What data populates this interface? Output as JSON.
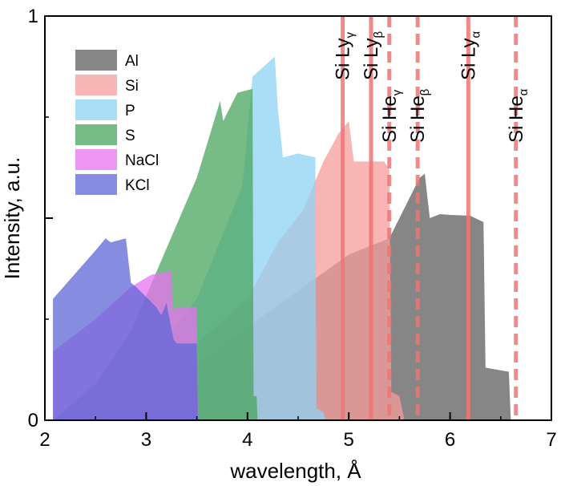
{
  "chart_data": {
    "type": "area",
    "xlabel": "wavelength, Å",
    "ylabel": "Intensity, a.u.",
    "xlim": [
      2,
      7
    ],
    "ylim": [
      0,
      1
    ],
    "x_ticks": [
      "2",
      "3",
      "4",
      "5",
      "6",
      "7"
    ],
    "y_ticks": [
      "0",
      "1"
    ],
    "grid": false,
    "legend_position": "top-left",
    "series": [
      {
        "name": "Al",
        "color": "#5e5e5e",
        "points": [
          [
            2.08,
            0
          ],
          [
            2.6,
            0.03
          ],
          [
            3.0,
            0.07
          ],
          [
            3.5,
            0.14
          ],
          [
            4.0,
            0.23
          ],
          [
            4.5,
            0.32
          ],
          [
            5.0,
            0.41
          ],
          [
            5.4,
            0.45
          ],
          [
            5.7,
            0.6
          ],
          [
            5.75,
            0.61
          ],
          [
            5.8,
            0.5
          ],
          [
            5.9,
            0.51
          ],
          [
            6.0,
            0.508
          ],
          [
            6.2,
            0.506
          ],
          [
            6.33,
            0.49
          ],
          [
            6.35,
            0.13
          ],
          [
            6.58,
            0.12
          ],
          [
            6.6,
            0
          ]
        ]
      },
      {
        "name": "Si",
        "color": "#f79b9b",
        "points": [
          [
            2.08,
            0
          ],
          [
            2.5,
            0.04
          ],
          [
            3.0,
            0.1
          ],
          [
            3.5,
            0.19
          ],
          [
            4.0,
            0.3
          ],
          [
            4.3,
            0.44
          ],
          [
            4.55,
            0.52
          ],
          [
            4.75,
            0.64
          ],
          [
            4.9,
            0.71
          ],
          [
            5.0,
            0.74
          ],
          [
            5.05,
            0.64
          ],
          [
            5.1,
            0.64
          ],
          [
            5.35,
            0.64
          ],
          [
            5.4,
            0.62
          ],
          [
            5.42,
            0.07
          ],
          [
            5.5,
            0.06
          ],
          [
            5.55,
            0
          ]
        ]
      },
      {
        "name": "P",
        "color": "#8dd3f3",
        "points": [
          [
            2.08,
            0
          ],
          [
            2.5,
            0.06
          ],
          [
            3.0,
            0.15
          ],
          [
            3.5,
            0.3
          ],
          [
            3.95,
            0.58
          ],
          [
            4.05,
            0.85
          ],
          [
            4.27,
            0.9
          ],
          [
            4.3,
            0.77
          ],
          [
            4.33,
            0.7
          ],
          [
            4.35,
            0.65
          ],
          [
            4.5,
            0.66
          ],
          [
            4.67,
            0.65
          ],
          [
            4.68,
            0.03
          ],
          [
            4.75,
            0.02
          ],
          [
            4.77,
            0
          ]
        ]
      },
      {
        "name": "S",
        "color": "#4aa65d",
        "points": [
          [
            2.08,
            0
          ],
          [
            2.5,
            0.09
          ],
          [
            2.85,
            0.22
          ],
          [
            3.5,
            0.6
          ],
          [
            3.73,
            0.79
          ],
          [
            3.76,
            0.74
          ],
          [
            3.9,
            0.81
          ],
          [
            4.05,
            0.82
          ],
          [
            4.06,
            0.06
          ],
          [
            4.09,
            0.06
          ],
          [
            4.1,
            0
          ]
        ]
      },
      {
        "name": "NaCl",
        "color": "#e873f0",
        "points": [
          [
            2.08,
            0.17
          ],
          [
            2.5,
            0.25
          ],
          [
            2.85,
            0.33
          ],
          [
            3.05,
            0.36
          ],
          [
            3.25,
            0.37
          ],
          [
            3.26,
            0.27
          ],
          [
            3.3,
            0.28
          ],
          [
            3.42,
            0.28
          ],
          [
            3.5,
            0.28
          ],
          [
            3.51,
            0
          ]
        ]
      },
      {
        "name": "KCl",
        "color": "#5d67d7",
        "points": [
          [
            2.08,
            0.3
          ],
          [
            2.5,
            0.42
          ],
          [
            2.6,
            0.45
          ],
          [
            2.65,
            0.44
          ],
          [
            2.8,
            0.45
          ],
          [
            2.85,
            0.34
          ],
          [
            2.9,
            0.33
          ],
          [
            3.1,
            0.28
          ],
          [
            3.15,
            0.26
          ],
          [
            3.2,
            0.29
          ],
          [
            3.27,
            0.2
          ],
          [
            3.3,
            0.19
          ],
          [
            3.5,
            0.19
          ],
          [
            3.51,
            0
          ]
        ]
      }
    ],
    "lines": [
      {
        "x": 4.94,
        "style": "solid",
        "main": "Si Ly",
        "sub": "γ"
      },
      {
        "x": 5.22,
        "style": "solid",
        "main": "Si Ly",
        "sub": "β"
      },
      {
        "x": 5.4,
        "style": "dashed",
        "main": "Si He",
        "sub": "γ"
      },
      {
        "x": 5.68,
        "style": "dashed",
        "main": "Si He",
        "sub": "β"
      },
      {
        "x": 6.18,
        "style": "solid",
        "main": "Si Ly",
        "sub": "α"
      },
      {
        "x": 6.65,
        "style": "dashed",
        "main": "Si He",
        "sub": "α"
      }
    ],
    "line_color": "#f07474"
  }
}
